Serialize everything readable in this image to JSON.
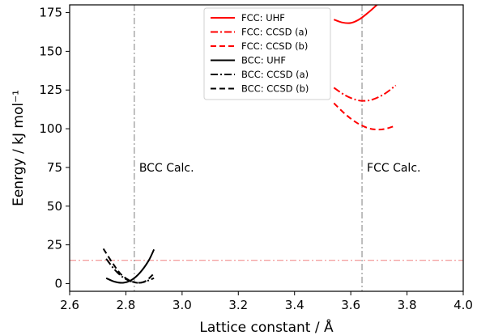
{
  "chart_data": {
    "type": "line",
    "xlabel": "Lattice constant / Å",
    "ylabel": "Eenrgy / kJ mol⁻¹",
    "xlim": [
      2.6,
      4.0
    ],
    "ylim": [
      -5,
      180
    ],
    "xticks": [
      "2.6",
      "2.8",
      "3.0",
      "3.2",
      "3.4",
      "3.6",
      "3.8",
      "4.0"
    ],
    "yticks": [
      "0",
      "25",
      "50",
      "75",
      "100",
      "125",
      "150",
      "175"
    ],
    "grid": false,
    "legend_position": "top-center",
    "series": [
      {
        "name": "FCC: UHF",
        "color": "#ff0000",
        "dash": "solid",
        "x": [
          3.54,
          3.57,
          3.6,
          3.63,
          3.66,
          3.69,
          3.72
        ],
        "y": [
          170.5,
          168.6,
          168.3,
          170.6,
          174.7,
          179.5,
          184.5
        ]
      },
      {
        "name": "FCC: CCSD (a)",
        "color": "#ff0000",
        "dash": "dashdot",
        "x": [
          3.54,
          3.58,
          3.62,
          3.65,
          3.68,
          3.72,
          3.76
        ],
        "y": [
          126.5,
          121.6,
          118.6,
          118.0,
          119.0,
          122.5,
          128.0
        ]
      },
      {
        "name": "FCC: CCSD (b)",
        "color": "#ff0000",
        "dash": "dashed",
        "x": [
          3.54,
          3.58,
          3.62,
          3.66,
          3.69,
          3.72,
          3.76
        ],
        "y": [
          116.5,
          109.5,
          104.0,
          100.5,
          99.5,
          99.8,
          102.0
        ]
      },
      {
        "name": "BCC: UHF",
        "color": "#000000",
        "dash": "solid",
        "x": [
          2.73,
          2.76,
          2.79,
          2.82,
          2.85,
          2.88,
          2.9
        ],
        "y": [
          3.5,
          1.2,
          0.5,
          2.3,
          7.0,
          14.5,
          22.0
        ]
      },
      {
        "name": "BCC: CCSD (a)",
        "color": "#000000",
        "dash": "dashdot",
        "x": [
          2.73,
          2.76,
          2.79,
          2.82,
          2.85,
          2.87,
          2.9
        ],
        "y": [
          16.0,
          9.0,
          4.0,
          1.3,
          0.5,
          1.3,
          3.5
        ]
      },
      {
        "name": "BCC: CCSD (b)",
        "color": "#000000",
        "dash": "dashed",
        "x": [
          2.72,
          2.75,
          2.78,
          2.81,
          2.84,
          2.87,
          2.9
        ],
        "y": [
          22.5,
          14.0,
          6.5,
          2.3,
          0.5,
          1.6,
          6.5
        ]
      }
    ],
    "vlines": [
      {
        "x": 2.83,
        "color": "#7f7f7f",
        "label": "BCC Calc.",
        "label_y": 75
      },
      {
        "x": 3.64,
        "color": "#7f7f7f",
        "label": "FCC Calc.",
        "label_y": 75
      }
    ],
    "hlines": [
      {
        "y": 15,
        "color": "#f08080"
      }
    ]
  }
}
